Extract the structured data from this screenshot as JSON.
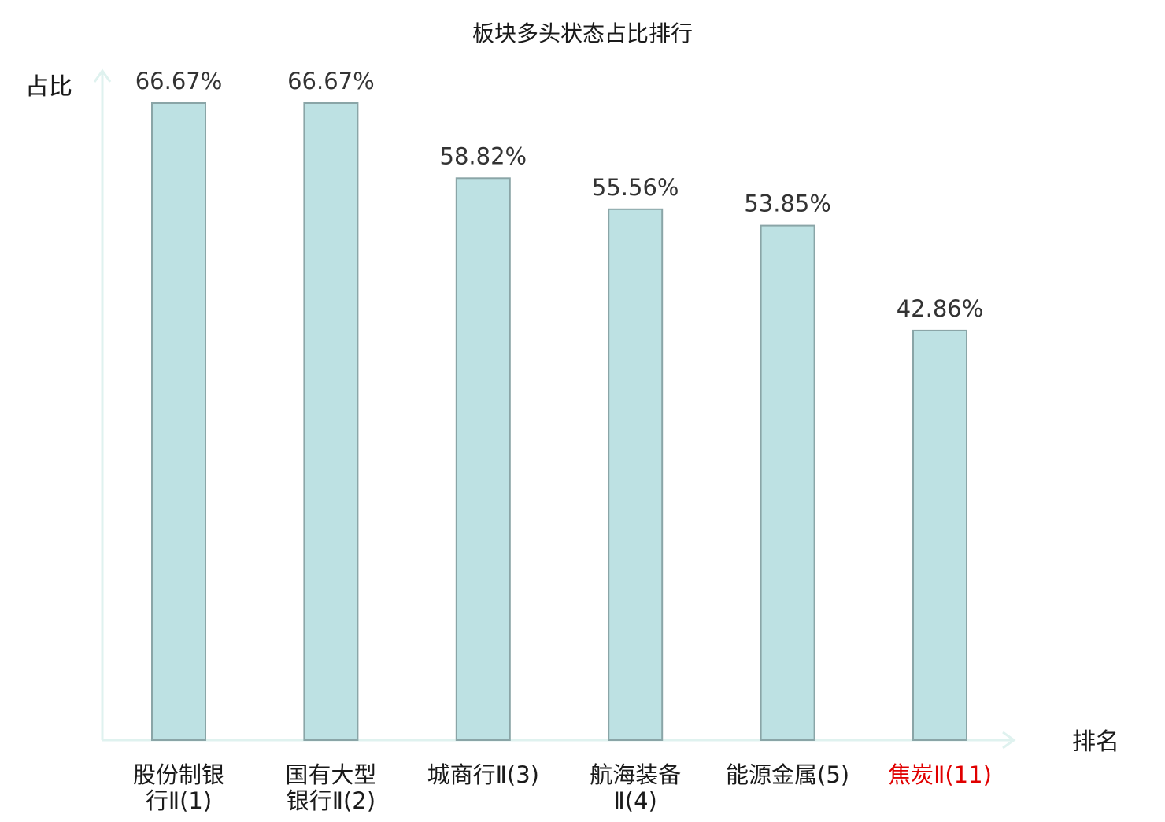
{
  "chart_data": {
    "type": "bar",
    "title": "板块多头状态占比排行",
    "ylabel": "占比",
    "xlabel": "排名",
    "categories": [
      {
        "lines": [
          "股份制银",
          "行Ⅱ(1)"
        ]
      },
      {
        "lines": [
          "国有大型",
          "银行Ⅱ(2)"
        ]
      },
      {
        "lines": [
          "城商行Ⅱ(3)"
        ]
      },
      {
        "lines": [
          "航海装备",
          "Ⅱ(4)"
        ]
      },
      {
        "lines": [
          "能源金属(5)"
        ]
      },
      {
        "lines": [
          "焦炭Ⅱ(11)"
        ],
        "highlight": true
      }
    ],
    "values": [
      66.67,
      66.67,
      58.82,
      55.56,
      53.85,
      42.86
    ],
    "value_labels": [
      "66.67%",
      "66.67%",
      "58.82%",
      "55.56%",
      "53.85%",
      "42.86%"
    ],
    "ylim": [
      0,
      66.67
    ],
    "grid": false,
    "legend": "none"
  },
  "colors": {
    "bar_fill": "#bde1e3",
    "bar_stroke": "#8aa5a7",
    "axis": "#dff2ef",
    "text": "#1a1a1a",
    "value_text": "#333333",
    "highlight_text": "#e00000"
  }
}
